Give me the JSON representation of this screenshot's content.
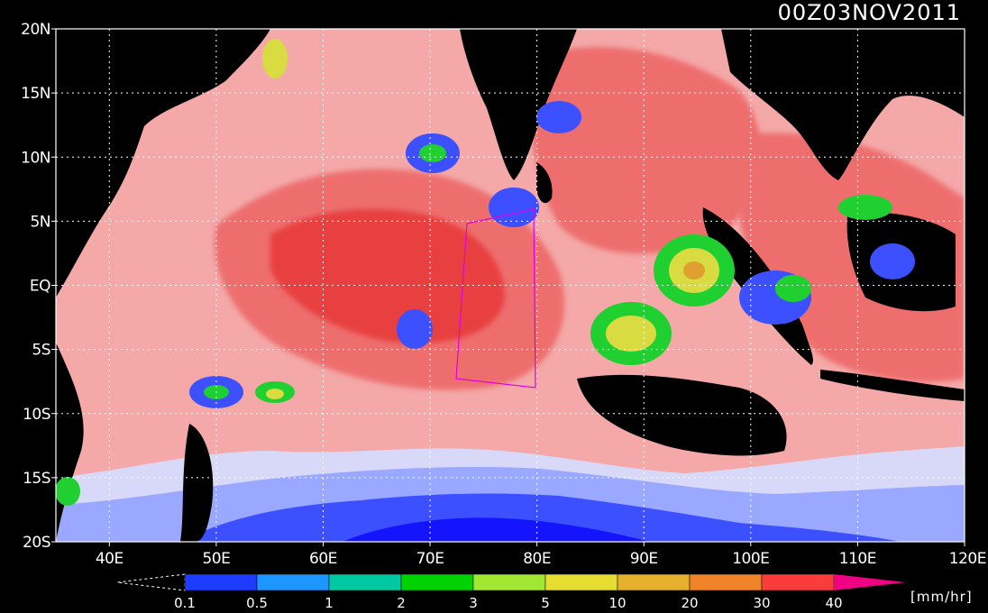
{
  "title": "00Z03NOV2011",
  "units": "[mm/hr]",
  "map": {
    "lon_range": [
      35,
      120
    ],
    "lat_range": [
      -20,
      20
    ],
    "lon_ticks": [
      {
        "value": 40,
        "label": "40E"
      },
      {
        "value": 50,
        "label": "50E"
      },
      {
        "value": 60,
        "label": "60E"
      },
      {
        "value": 70,
        "label": "70E"
      },
      {
        "value": 80,
        "label": "80E"
      },
      {
        "value": 90,
        "label": "90E"
      },
      {
        "value": 100,
        "label": "100E"
      },
      {
        "value": 110,
        "label": "110E"
      },
      {
        "value": 120,
        "label": "120E"
      }
    ],
    "lat_ticks": [
      {
        "value": 20,
        "label": "20N"
      },
      {
        "value": 15,
        "label": "15N"
      },
      {
        "value": 10,
        "label": "10N"
      },
      {
        "value": 5,
        "label": "5N"
      },
      {
        "value": 0,
        "label": "EQ"
      },
      {
        "value": -5,
        "label": "5S"
      },
      {
        "value": -10,
        "label": "10S"
      },
      {
        "value": -15,
        "label": "15S"
      },
      {
        "value": -20,
        "label": "20S"
      }
    ],
    "grid": "dotted"
  },
  "colorbar": {
    "labels": [
      "0.1",
      "0.5",
      "1",
      "2",
      "3",
      "5",
      "10",
      "20",
      "30",
      "40"
    ],
    "colors": [
      "#1e3cff",
      "#1e96ff",
      "#00c8a0",
      "#00d200",
      "#a0e632",
      "#e6dc32",
      "#e6af2d",
      "#f08228",
      "#fa3c3c",
      "#f00082"
    ],
    "under_arrow": "white-dashed",
    "over_color": "#f00082"
  },
  "colors": {
    "land": "#000000",
    "very_light_rain": "#d8d8f8",
    "light_pink": "#f8c8c8",
    "pink": "#f4a0a0",
    "salmon": "#ee6e6e",
    "red": "#e84040",
    "light_blue": "#9aa8ff",
    "blue": "#3c50ff",
    "deep_blue": "#1414ff",
    "green": "#20d030",
    "yellow": "#d8dc40",
    "orange": "#e0a030"
  }
}
